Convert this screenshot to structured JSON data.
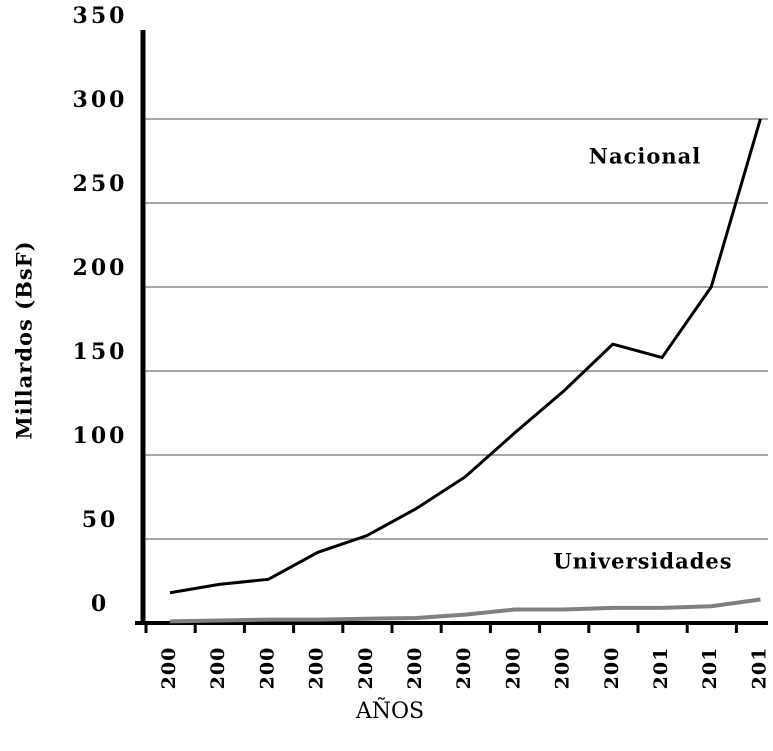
{
  "chart_data": {
    "type": "line",
    "y_label": "Millardos (BsF)",
    "x_label": "AÑOS",
    "categories": [
      "200",
      "200",
      "200",
      "200",
      "200",
      "200",
      "200",
      "200",
      "200",
      "200",
      "201",
      "201",
      "201"
    ],
    "series": [
      {
        "name": "Nacional",
        "color": "#000000",
        "values": [
          18,
          23,
          26,
          42,
          52,
          68,
          87,
          113,
          138,
          166,
          158,
          200,
          300
        ]
      },
      {
        "name": "Universidades",
        "color": "#808080",
        "values": [
          1,
          1.5,
          2,
          2,
          2.5,
          3,
          5,
          8,
          8,
          9,
          9,
          10,
          14
        ]
      }
    ],
    "ylim": [
      0,
      350
    ],
    "yticks": [
      0,
      50,
      100,
      150,
      200,
      250,
      300,
      350
    ],
    "grid": true
  }
}
